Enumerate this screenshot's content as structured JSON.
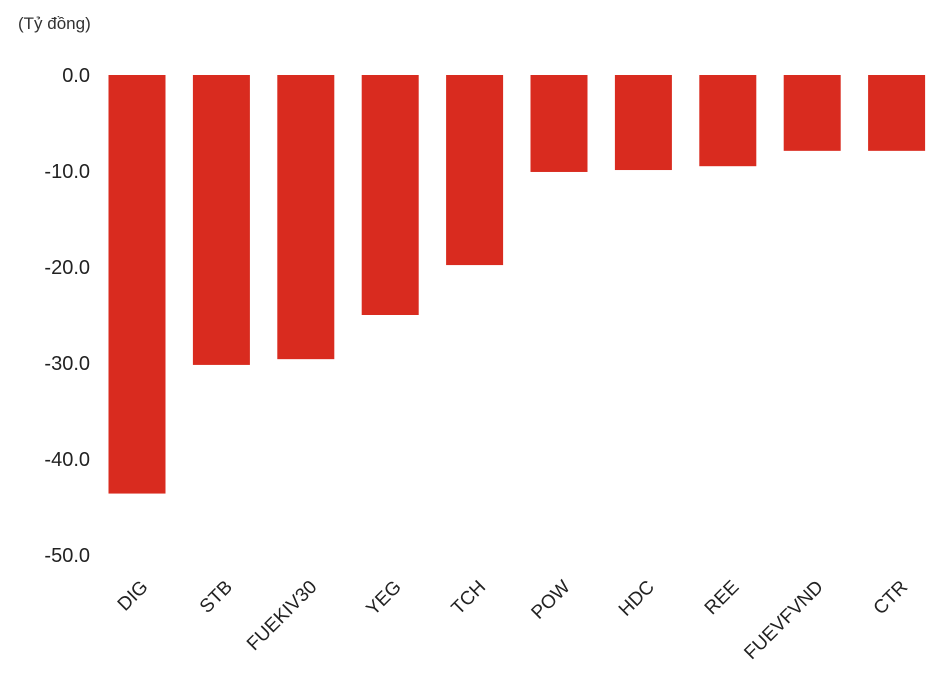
{
  "chart_data": {
    "type": "bar",
    "unit_label": "(Tỷ đồng)",
    "categories": [
      "DIG",
      "STB",
      "FUEKIV30",
      "YEG",
      "TCH",
      "POW",
      "HDC",
      "REE",
      "FUEVFVND",
      "CTR"
    ],
    "values": [
      -43.6,
      -30.2,
      -29.6,
      -25.0,
      -19.8,
      -10.1,
      -9.9,
      -9.5,
      -7.9,
      -7.9
    ],
    "ylim": [
      -50,
      0
    ],
    "yticks": [
      "0.0",
      "-10.0",
      "-20.0",
      "-30.0",
      "-40.0",
      "-50.0"
    ],
    "ytick_values": [
      0,
      -10,
      -20,
      -30,
      -40,
      -50
    ],
    "grid": false,
    "legend": "none",
    "bar_color": "#d92b1f"
  }
}
